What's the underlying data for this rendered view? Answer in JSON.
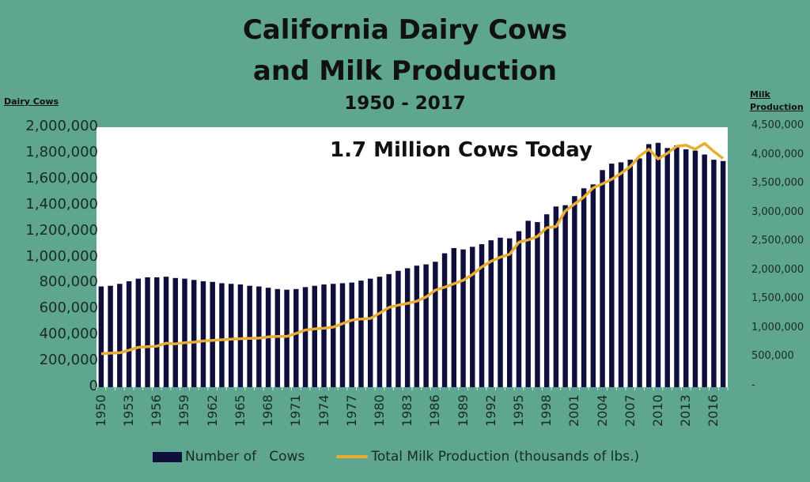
{
  "chart_data": {
    "type": "bar",
    "title": "California Dairy Cows and Milk Production",
    "subtitle": "1950 - 2017",
    "annotation": "1.7 Million Cows Today",
    "y_left_label": "Dairy Cows",
    "y_right_label": "Milk Production",
    "y_left_ticks": [
      "2,000,000",
      "1,800,000",
      "1,600,000",
      "1,400,000",
      "1,200,000",
      "1,000,000",
      "800,000",
      "600,000",
      "400,000",
      "200,000",
      "0"
    ],
    "y_right_ticks": [
      "4,500,000",
      "4,000,000",
      "3,500,000",
      "3,000,000",
      "2,500,000",
      "2,000,000",
      "1,500,000",
      "1,000,000",
      "500,000",
      "-"
    ],
    "ylim_left": [
      0,
      2000000
    ],
    "ylim_right": [
      0,
      4500000
    ],
    "x_tick_labels": [
      "1950",
      "1953",
      "1956",
      "1959",
      "1962",
      "1965",
      "1968",
      "1971",
      "1974",
      "1977",
      "1980",
      "1983",
      "1986",
      "1989",
      "1992",
      "1995",
      "1998",
      "2001",
      "2004",
      "2007",
      "2010",
      "2013",
      "2016"
    ],
    "categories": [
      1950,
      1951,
      1952,
      1953,
      1954,
      1955,
      1956,
      1957,
      1958,
      1959,
      1960,
      1961,
      1962,
      1963,
      1964,
      1965,
      1966,
      1967,
      1968,
      1969,
      1970,
      1971,
      1972,
      1973,
      1974,
      1975,
      1976,
      1977,
      1978,
      1979,
      1980,
      1981,
      1982,
      1983,
      1984,
      1985,
      1986,
      1987,
      1988,
      1989,
      1990,
      1991,
      1992,
      1993,
      1994,
      1995,
      1996,
      1997,
      1998,
      1999,
      2000,
      2001,
      2002,
      2003,
      2004,
      2005,
      2006,
      2007,
      2008,
      2009,
      2010,
      2011,
      2012,
      2013,
      2014,
      2015,
      2016,
      2017
    ],
    "series": [
      {
        "name": "Number of   Cows",
        "type": "bar",
        "axis": "left",
        "color": "#0f0f3d",
        "values": [
          775000,
          780000,
          795000,
          815000,
          835000,
          845000,
          845000,
          850000,
          840000,
          835000,
          825000,
          815000,
          810000,
          800000,
          795000,
          790000,
          780000,
          775000,
          765000,
          755000,
          750000,
          755000,
          770000,
          780000,
          790000,
          795000,
          800000,
          805000,
          820000,
          835000,
          850000,
          870000,
          895000,
          915000,
          935000,
          945000,
          965000,
          1030000,
          1070000,
          1060000,
          1080000,
          1100000,
          1130000,
          1150000,
          1145000,
          1200000,
          1280000,
          1270000,
          1330000,
          1390000,
          1400000,
          1470000,
          1530000,
          1560000,
          1670000,
          1720000,
          1730000,
          1750000,
          1760000,
          1870000,
          1880000,
          1840000,
          1860000,
          1830000,
          1820000,
          1790000,
          1750000,
          1740000
        ]
      },
      {
        "name": "Total Milk Production (thousands of lbs.)",
        "type": "line",
        "axis": "right",
        "color": "#e8ad33",
        "values": [
          580000,
          590000,
          595000,
          640000,
          690000,
          700000,
          710000,
          760000,
          750000,
          770000,
          780000,
          800000,
          810000,
          820000,
          830000,
          840000,
          845000,
          850000,
          870000,
          880000,
          880000,
          930000,
          990000,
          1010000,
          1020000,
          1040000,
          1100000,
          1160000,
          1180000,
          1190000,
          1280000,
          1380000,
          1420000,
          1450000,
          1490000,
          1560000,
          1680000,
          1730000,
          1790000,
          1850000,
          1950000,
          2080000,
          2180000,
          2250000,
          2300000,
          2510000,
          2550000,
          2610000,
          2760000,
          2780000,
          3050000,
          3170000,
          3290000,
          3450000,
          3520000,
          3600000,
          3700000,
          3820000,
          4000000,
          4120000,
          3950000,
          4050000,
          4170000,
          4190000,
          4120000,
          4220000,
          4080000,
          3960000
        ]
      }
    ],
    "grid": false,
    "legend_position": "bottom"
  },
  "legend": {
    "bars": "Number of   Cows",
    "line": "Total Milk Production (thousands of lbs.)"
  }
}
